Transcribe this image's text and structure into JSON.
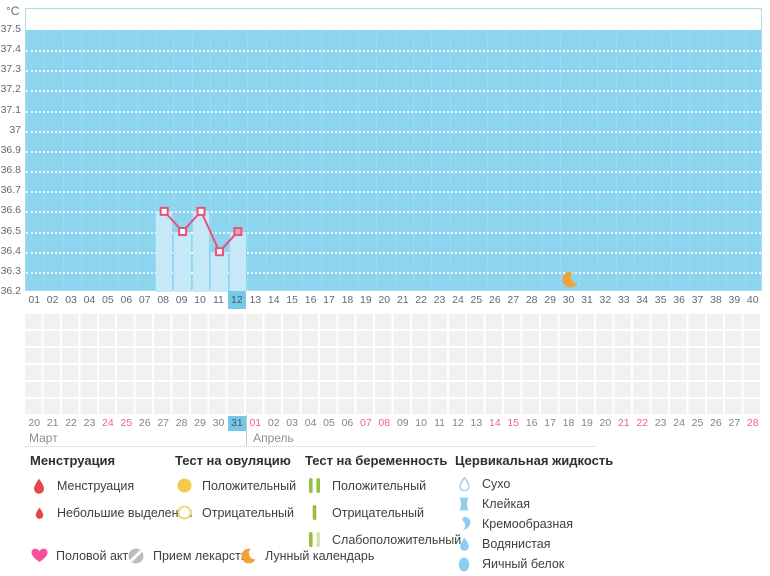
{
  "unit_label": "°C",
  "colors": {
    "chart_bg": "#8dd4ef",
    "bar_fill": "#c6e8f7",
    "selected_day_bg": "#76c8e8",
    "line": "#e75277",
    "point_fill": "#ffffff",
    "point_fill_selected": "#f2a0ba",
    "weekend_text": "#f06092",
    "menstruation_red": "#e64848",
    "ovulation_yellow": "#f6c94b",
    "ovulation_outline": "#f5d87f",
    "pregnancy_green": "#95c13e",
    "pregnancy_pale": "#d5e6ab",
    "fluid_blue": "#8fcdf0",
    "heart_pink": "#fa4f9d",
    "pill_gray": "#bdbdbd",
    "moon_orange": "#f2a233"
  },
  "chart_data": {
    "type": "line",
    "title": "",
    "ylabel": "°C",
    "ylim": [
      36.2,
      37.5
    ],
    "y_ticks": [
      "37.5",
      "37.4",
      "37.3",
      "37.2",
      "37.1",
      "37",
      "36.9",
      "36.8",
      "36.7",
      "36.6",
      "36.5",
      "36.4",
      "36.3",
      "36.2"
    ],
    "x_categories_cycle_days": [
      "01",
      "02",
      "03",
      "04",
      "05",
      "06",
      "07",
      "08",
      "09",
      "10",
      "11",
      "12",
      "13",
      "14",
      "15",
      "16",
      "17",
      "18",
      "19",
      "20",
      "21",
      "22",
      "23",
      "24",
      "25",
      "26",
      "27",
      "28",
      "29",
      "30",
      "31",
      "32",
      "33",
      "34",
      "35",
      "36",
      "37",
      "38",
      "39",
      "40"
    ],
    "x": [
      8,
      9,
      10,
      11,
      12
    ],
    "y": [
      36.6,
      36.5,
      36.6,
      36.4,
      36.5
    ],
    "selected_cycle_day": "12",
    "lunar_marker_cycle_day": 30,
    "grid": "horizontal-dotted-white",
    "legend_position": "below"
  },
  "calendar": {
    "months": [
      {
        "label": "Март",
        "days": [
          "20",
          "21",
          "22",
          "23",
          "24",
          "25",
          "26",
          "27",
          "28",
          "29",
          "30",
          "31"
        ],
        "weekends": [
          "24",
          "25"
        ],
        "selected": "31"
      },
      {
        "label": "Апрель",
        "days": [
          "01",
          "02",
          "03",
          "04",
          "05",
          "06",
          "07",
          "08",
          "09",
          "10",
          "11",
          "12",
          "13",
          "14",
          "15",
          "16",
          "17",
          "18",
          "19",
          "20",
          "21",
          "22",
          "23",
          "24",
          "25",
          "26",
          "27",
          "28"
        ],
        "weekends": [
          "01",
          "07",
          "08",
          "14",
          "15",
          "21",
          "22",
          "28"
        ],
        "selected": ""
      }
    ]
  },
  "legend": {
    "sections": [
      {
        "title": "Менструация",
        "items": [
          {
            "icon": "blood-drop-large-icon",
            "label": "Менструация"
          },
          {
            "icon": "blood-drop-small-icon",
            "label": "Небольшие выделения"
          }
        ]
      },
      {
        "title": "Тест на овуляцию",
        "items": [
          {
            "icon": "filled-circle-icon",
            "label": "Положительный"
          },
          {
            "icon": "outlined-circle-icon",
            "label": "Отрицательный"
          }
        ]
      },
      {
        "title": "Тест на беременность",
        "items": [
          {
            "icon": "double-strip-icon",
            "label": "Положительный"
          },
          {
            "icon": "single-strip-icon",
            "label": "Отрицательный"
          },
          {
            "icon": "strip-strong-weak-icon",
            "label": "Слабоположительный"
          }
        ]
      },
      {
        "title": "Цервикальная жидкость",
        "items": [
          {
            "icon": "outlined-droplet-icon",
            "label": "Сухо"
          },
          {
            "icon": "hourglass-icon",
            "label": "Клейкая"
          },
          {
            "icon": "comma-drop-icon",
            "label": "Кремообразная"
          },
          {
            "icon": "filled-droplet-icon",
            "label": "Водянистая"
          },
          {
            "icon": "filled-oval-icon",
            "label": "Яичный белок"
          }
        ]
      }
    ],
    "footer_items": [
      {
        "icon": "heart-icon",
        "label": "Половой акт"
      },
      {
        "icon": "pill-icon",
        "label": "Прием лекарств"
      },
      {
        "icon": "crescent-moon-icon",
        "label": "Лунный календарь"
      }
    ]
  }
}
